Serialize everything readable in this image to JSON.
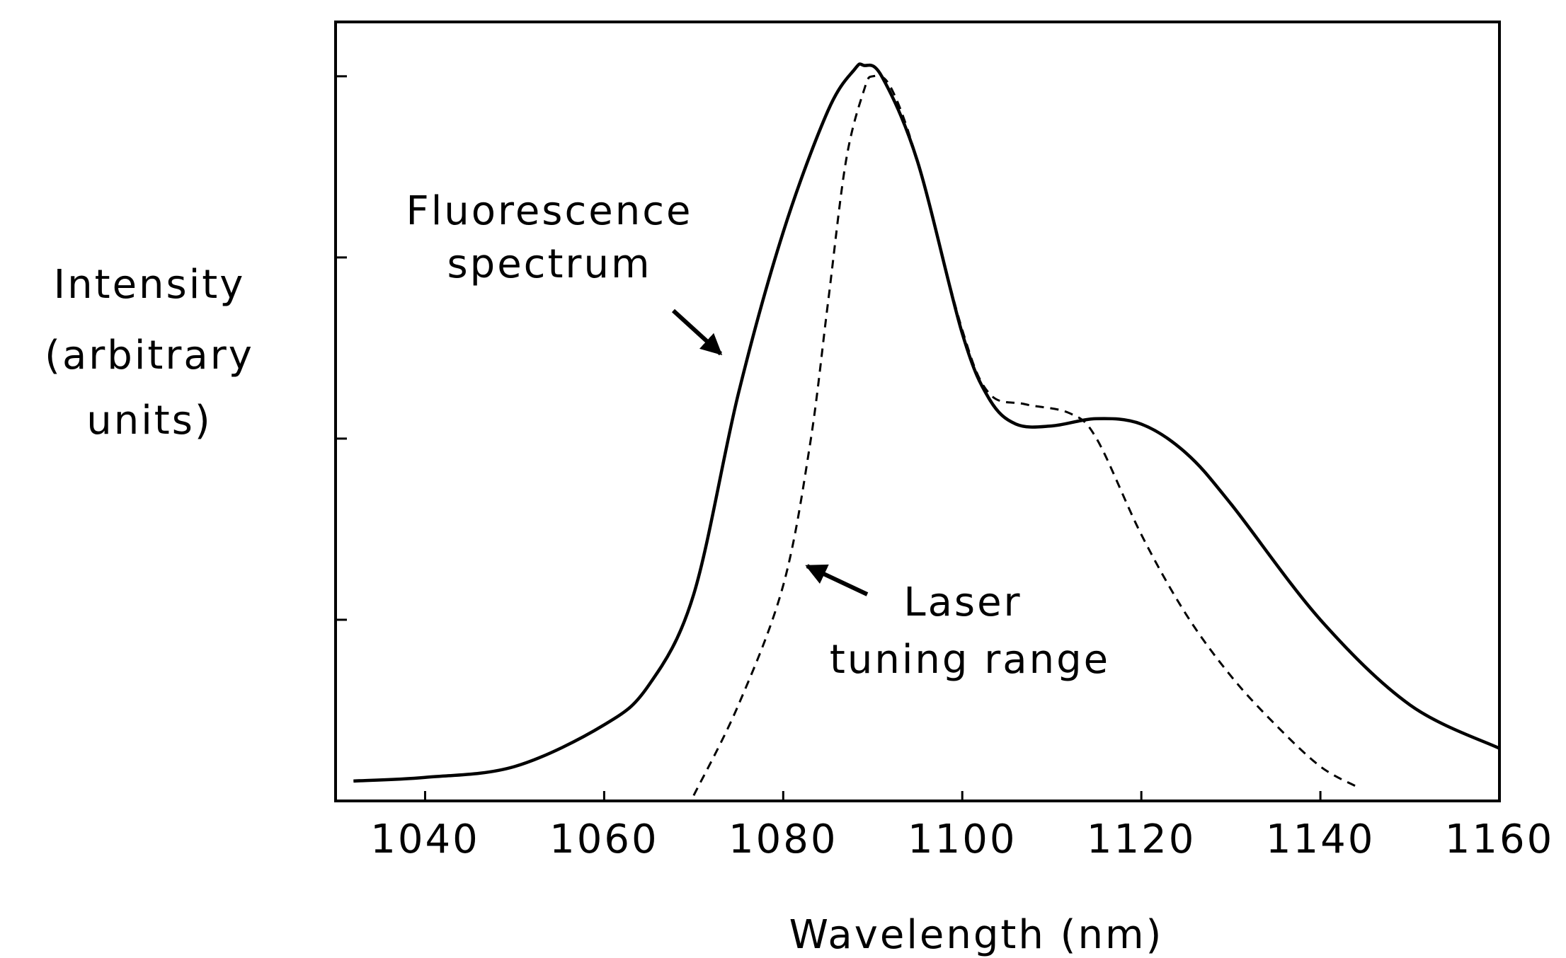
{
  "chart_data": {
    "type": "line",
    "xlabel": "Wavelength (nm)",
    "ylabel": [
      "Intensity",
      "(arbitrary",
      "units)"
    ],
    "annotations": [
      [
        "Fluorescence",
        "spectrum"
      ],
      [
        "Laser",
        "tuning range"
      ]
    ],
    "xlim": [
      1030,
      1160
    ],
    "xticks": [
      1040,
      1060,
      1080,
      1100,
      1120,
      1140,
      1160
    ],
    "ylim": [
      0,
      4.3
    ],
    "yticks": [
      1,
      2,
      3,
      4
    ],
    "series": [
      {
        "color": "#000000",
        "dash": "solid",
        "x": [
          1032,
          1040,
          1050,
          1060,
          1065,
          1070,
          1075,
          1080,
          1085,
          1088,
          1089,
          1091,
          1095,
          1100,
          1103,
          1106,
          1110,
          1115,
          1120,
          1125,
          1130,
          1140,
          1150,
          1160
        ],
        "values": [
          0.11,
          0.13,
          0.19,
          0.42,
          0.64,
          1.14,
          2.25,
          3.14,
          3.81,
          4.04,
          4.06,
          4.0,
          3.53,
          2.58,
          2.22,
          2.08,
          2.07,
          2.11,
          2.08,
          1.92,
          1.64,
          1.0,
          0.53,
          0.29
        ]
      },
      {
        "color": "#000000",
        "dash": "dashed",
        "x": [
          1070,
          1075,
          1080,
          1083,
          1085,
          1087,
          1089,
          1090,
          1092,
          1095,
          1100,
          1103,
          1107,
          1112,
          1115,
          1120,
          1125,
          1130,
          1135,
          1140,
          1144
        ],
        "values": [
          0.03,
          0.53,
          1.19,
          1.97,
          2.75,
          3.53,
          3.92,
          4.0,
          3.94,
          3.53,
          2.6,
          2.25,
          2.19,
          2.14,
          2.0,
          1.47,
          1.03,
          0.69,
          0.42,
          0.19,
          0.08
        ]
      }
    ]
  }
}
